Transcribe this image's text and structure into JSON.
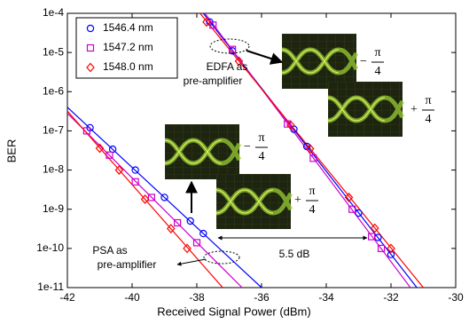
{
  "chart_data": {
    "type": "scatter",
    "ylabel": "BER",
    "xlabel": "Received Signal Power (dBm)",
    "log_y": true,
    "grid": false,
    "legend": "upper left",
    "xlim": [
      -42,
      -30
    ],
    "xticks": [
      -42,
      -40,
      -38,
      -36,
      -34,
      -32,
      -30
    ],
    "ylim": [
      1e-11,
      0.0001
    ],
    "yticks": [
      {
        "value": 1e-11,
        "label": "1e-11"
      },
      {
        "value": 1e-10,
        "label": "1e-10"
      },
      {
        "value": 1e-09,
        "label": "1e-9"
      },
      {
        "value": 1e-08,
        "label": "1e-8"
      },
      {
        "value": 1e-07,
        "label": "1e-7"
      },
      {
        "value": 1e-06,
        "label": "1e-6"
      },
      {
        "value": 1e-05,
        "label": "1e-5"
      },
      {
        "value": 0.0001,
        "label": "1e-4"
      }
    ],
    "series": [
      {
        "name": "1546.4 nm",
        "color": "#0000ff",
        "marker": "circle",
        "x": [
          -41.3,
          -40.6,
          -39.9,
          -39.0,
          -38.2,
          -37.8,
          -37.6,
          -36.9,
          -35.0,
          -34.6,
          -33.0,
          -32.4,
          -32.0
        ],
        "values": [
          1.2e-07,
          3.4e-08,
          1e-08,
          2e-09,
          5e-10,
          2.4e-10,
          6e-05,
          1.1e-05,
          1.1e-07,
          4e-08,
          8e-10,
          1.9e-10,
          7e-11
        ]
      },
      {
        "name": "1547.2 nm",
        "color": "#cc00cc",
        "marker": "square",
        "x": [
          -41.4,
          -40.7,
          -39.9,
          -39.4,
          -38.6,
          -38.0,
          -37.5,
          -36.9,
          -35.2,
          -34.4,
          -33.2,
          -32.6,
          -32.3
        ],
        "values": [
          1e-07,
          2.4e-08,
          5e-09,
          2e-09,
          4.5e-10,
          1.4e-10,
          5e-05,
          1.2e-05,
          1.5e-07,
          2e-08,
          1e-09,
          2e-10,
          1e-10
        ]
      },
      {
        "name": "1548.0 nm",
        "color": "#ff0000",
        "marker": "diamond",
        "x": [
          -41.0,
          -40.4,
          -39.6,
          -38.8,
          -38.3,
          -37.7,
          -36.7,
          -35.1,
          -34.5,
          -33.3,
          -32.5,
          -32.0
        ],
        "values": [
          3.6e-08,
          1e-08,
          1.8e-09,
          3.2e-10,
          1e-10,
          6e-05,
          6e-06,
          1.4e-07,
          3.5e-08,
          2e-09,
          3.3e-10,
          1e-10
        ]
      }
    ],
    "fit_lines": [
      {
        "color": "#0000ff",
        "x": [
          -42,
          -36
        ],
        "values": [
          4e-07,
          1e-11
        ]
      },
      {
        "color": "#cc00cc",
        "x": [
          -42,
          -36.6
        ],
        "values": [
          2.8e-07,
          1e-11
        ]
      },
      {
        "color": "#ff0000",
        "x": [
          -42,
          -37.2
        ],
        "values": [
          3.2e-07,
          1e-11
        ]
      },
      {
        "color": "#0000ff",
        "x": [
          -37.8,
          -31.2
        ],
        "values": [
          0.0001,
          1e-11
        ]
      },
      {
        "color": "#cc00cc",
        "x": [
          -37.75,
          -31.4
        ],
        "values": [
          0.0001,
          1e-11
        ]
      },
      {
        "color": "#ff0000",
        "x": [
          -37.9,
          -31.0
        ],
        "values": [
          0.0001,
          1e-11
        ]
      }
    ],
    "annotations": [
      "EDFA as",
      "pre-amplifier",
      "PSA as",
      "pre-amplifier",
      "5.5 dB"
    ],
    "eye_labels": [
      {
        "sign": "−",
        "numerator": "π",
        "denominator": "4"
      },
      {
        "sign": "+",
        "numerator": "π",
        "denominator": "4"
      },
      {
        "sign": "−",
        "numerator": "π",
        "denominator": "4"
      },
      {
        "sign": "+",
        "numerator": "π",
        "denominator": "4"
      }
    ]
  }
}
